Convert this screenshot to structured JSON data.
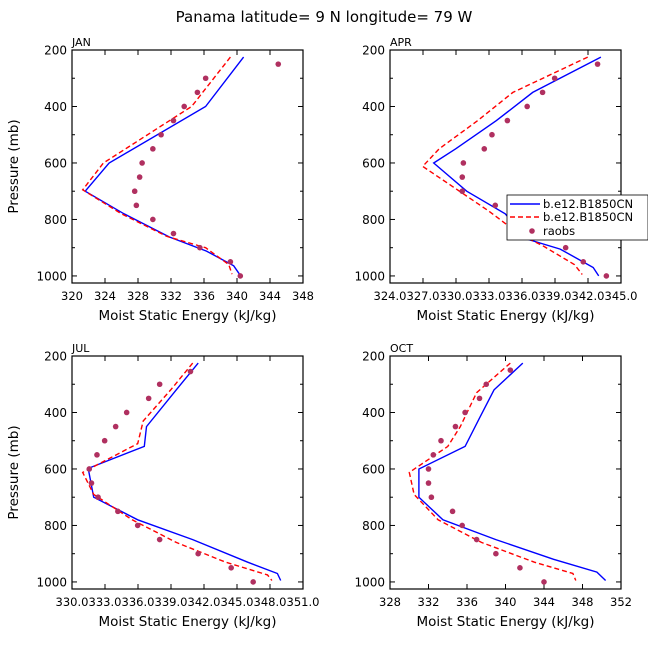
{
  "title": "Panama  latitude= 9 N longitude= 79 W",
  "colors": {
    "case1": "#0000ff",
    "case2": "#ff0000",
    "raobs": "#b03060",
    "axis": "#000000"
  },
  "legend": [
    "b.e12.B1850CN",
    "b.e12.B1850CN",
    "raobs"
  ],
  "chart_data": [
    {
      "type": "line",
      "title": "JAN",
      "xlabel": "Moist Static Energy (kJ/kg)",
      "ylabel": "Pressure (mb)",
      "xlim": [
        320,
        348
      ],
      "ylim": [
        200,
        1025
      ],
      "yticks": [
        200,
        400,
        600,
        800,
        1000
      ],
      "ytick_labels": [
        "200",
        "400",
        "600",
        "800",
        "1000"
      ],
      "xticks": [
        320,
        324,
        328,
        332,
        336,
        340,
        344,
        348
      ],
      "xtick_labels": [
        "320",
        "324",
        "328",
        "332",
        "336",
        "340",
        "344",
        "348"
      ],
      "series": [
        {
          "name": "b.e12.B1850CN",
          "kind": "solid",
          "points": [
            [
              340.8,
              225
            ],
            [
              336.2,
              400
            ],
            [
              324.5,
              600
            ],
            [
              321.6,
              700
            ],
            [
              326.3,
              780
            ],
            [
              331.8,
              862
            ],
            [
              336.3,
              912
            ],
            [
              339.6,
              964
            ],
            [
              340.3,
              994
            ]
          ]
        },
        {
          "name": "b.e12.B1850CN",
          "kind": "dashed",
          "points": [
            [
              339.2,
              225
            ],
            [
              334.5,
              400
            ],
            [
              323.8,
              600
            ],
            [
              321.3,
              695
            ],
            [
              326.0,
              780
            ],
            [
              331.5,
              860
            ],
            [
              336.2,
              900
            ],
            [
              339.0,
              960
            ],
            [
              339.4,
              994
            ]
          ]
        },
        {
          "name": "raobs",
          "kind": "points",
          "points": [
            [
              345.0,
              250
            ],
            [
              336.2,
              300
            ],
            [
              335.2,
              350
            ],
            [
              333.6,
              400
            ],
            [
              332.3,
              450
            ],
            [
              330.8,
              500
            ],
            [
              329.8,
              550
            ],
            [
              328.5,
              600
            ],
            [
              328.2,
              650
            ],
            [
              327.6,
              700
            ],
            [
              327.8,
              750
            ],
            [
              329.8,
              800
            ],
            [
              332.3,
              850
            ],
            [
              335.5,
              900
            ],
            [
              339.2,
              950
            ],
            [
              340.4,
              1000
            ]
          ]
        }
      ]
    },
    {
      "type": "line",
      "title": "APR",
      "xlabel": "Moist Static Energy (kJ/kg)",
      "ylabel": "",
      "xlim": [
        324.03,
        345.03
      ],
      "ylim": [
        200,
        1025
      ],
      "yticks": [
        200,
        400,
        600,
        800,
        1000
      ],
      "ytick_labels": [
        "200",
        "400",
        "600",
        "800",
        "1000"
      ],
      "xticks": [
        324.03,
        327.03,
        330.03,
        333.03,
        336.03,
        339.03,
        342.03,
        345.03
      ],
      "xtick_labels": [
        "324.0",
        "327.0",
        "330.0",
        "333.0",
        "336.0",
        "339.0",
        "342.0",
        "345.0"
      ],
      "series": [
        {
          "name": "b.e12.B1850CN",
          "kind": "solid",
          "points": [
            [
              343.2,
              225
            ],
            [
              337.0,
              350
            ],
            [
              333.7,
              450
            ],
            [
              330.0,
              550
            ],
            [
              328.0,
              600
            ],
            [
              331.0,
              700
            ],
            [
              334.5,
              780
            ],
            [
              336.5,
              870
            ],
            [
              339.5,
              905
            ],
            [
              342.5,
              970
            ],
            [
              343.0,
              1000
            ]
          ]
        },
        {
          "name": "b.e12.B1850CN",
          "kind": "dashed",
          "points": [
            [
              342.0,
              225
            ],
            [
              335.2,
              350
            ],
            [
              332.0,
              450
            ],
            [
              328.5,
              550
            ],
            [
              327.0,
              612
            ],
            [
              329.2,
              670
            ],
            [
              333.0,
              770
            ],
            [
              335.8,
              852
            ],
            [
              338.0,
              895
            ],
            [
              340.8,
              960
            ],
            [
              341.5,
              995
            ]
          ]
        },
        {
          "name": "raobs",
          "kind": "points",
          "points": [
            [
              342.9,
              250
            ],
            [
              339.0,
              300
            ],
            [
              337.9,
              350
            ],
            [
              336.5,
              400
            ],
            [
              334.7,
              450
            ],
            [
              333.3,
              500
            ],
            [
              332.6,
              550
            ],
            [
              330.7,
              600
            ],
            [
              330.6,
              650
            ],
            [
              330.6,
              700
            ],
            [
              333.6,
              750
            ],
            [
              335.5,
              800
            ],
            [
              337.9,
              850
            ],
            [
              340.0,
              900
            ],
            [
              341.6,
              950
            ],
            [
              343.7,
              1000
            ]
          ]
        }
      ]
    },
    {
      "type": "line",
      "title": "JUL",
      "xlabel": "Moist Static Energy (kJ/kg)",
      "ylabel": "Pressure (mb)",
      "xlim": [
        330.03,
        351.03
      ],
      "ylim": [
        200,
        1025
      ],
      "yticks": [
        200,
        400,
        600,
        800,
        1000
      ],
      "ytick_labels": [
        "200",
        "400",
        "600",
        "800",
        "1000"
      ],
      "xticks": [
        330.03,
        333.03,
        336.03,
        339.03,
        342.03,
        345.03,
        348.03,
        351.03
      ],
      "xtick_labels": [
        "330.0",
        "333.0",
        "336.0",
        "339.0",
        "342.0",
        "345.0",
        "348.0",
        "351.0"
      ],
      "series": [
        {
          "name": "b.e12.B1850CN",
          "kind": "solid",
          "points": [
            [
              341.5,
              225
            ],
            [
              339.5,
              320
            ],
            [
              336.8,
              450
            ],
            [
              336.6,
              520
            ],
            [
              331.5,
              598
            ],
            [
              332.0,
              700
            ],
            [
              336.0,
              780
            ],
            [
              341.0,
              850
            ],
            [
              346.0,
              930
            ],
            [
              348.7,
              970
            ],
            [
              349.0,
              995
            ]
          ]
        },
        {
          "name": "b.e12.B1850CN",
          "kind": "dashed",
          "points": [
            [
              341.0,
              225
            ],
            [
              339.0,
              320
            ],
            [
              336.5,
              430
            ],
            [
              336.0,
              510
            ],
            [
              331.0,
              612
            ],
            [
              332.0,
              690
            ],
            [
              335.5,
              780
            ],
            [
              339.5,
              860
            ],
            [
              344.0,
              930
            ],
            [
              347.8,
              975
            ],
            [
              348.2,
              995
            ]
          ]
        },
        {
          "name": "raobs",
          "kind": "points",
          "points": [
            [
              340.8,
              255
            ],
            [
              338.0,
              300
            ],
            [
              337.0,
              350
            ],
            [
              335.0,
              400
            ],
            [
              334.0,
              450
            ],
            [
              333.0,
              500
            ],
            [
              332.3,
              550
            ],
            [
              331.6,
              600
            ],
            [
              331.8,
              650
            ],
            [
              332.4,
              700
            ],
            [
              334.2,
              750
            ],
            [
              336.0,
              800
            ],
            [
              338.0,
              850
            ],
            [
              341.5,
              900
            ],
            [
              344.5,
              950
            ],
            [
              346.5,
              1000
            ]
          ]
        }
      ]
    },
    {
      "type": "line",
      "title": "OCT",
      "xlabel": "Moist Static Energy (kJ/kg)",
      "ylabel": "",
      "xlim": [
        328,
        352
      ],
      "ylim": [
        200,
        1025
      ],
      "yticks": [
        200,
        400,
        600,
        800,
        1000
      ],
      "ytick_labels": [
        "200",
        "400",
        "600",
        "800",
        "1000"
      ],
      "xticks": [
        328,
        332,
        336,
        340,
        344,
        348,
        352
      ],
      "xtick_labels": [
        "328",
        "332",
        "336",
        "340",
        "344",
        "348",
        "352"
      ],
      "series": [
        {
          "name": "b.e12.B1850CN",
          "kind": "solid",
          "points": [
            [
              341.8,
              225
            ],
            [
              338.8,
              320
            ],
            [
              337.3,
              420
            ],
            [
              335.8,
              520
            ],
            [
              331.0,
              600
            ],
            [
              331.0,
              700
            ],
            [
              333.5,
              780
            ],
            [
              339.0,
              850
            ],
            [
              345.0,
              920
            ],
            [
              349.5,
              965
            ],
            [
              350.4,
              995
            ]
          ]
        },
        {
          "name": "b.e12.B1850CN",
          "kind": "dashed",
          "points": [
            [
              340.5,
              225
            ],
            [
              337.0,
              330
            ],
            [
              335.3,
              450
            ],
            [
              334.0,
              520
            ],
            [
              330.0,
              612
            ],
            [
              330.5,
              690
            ],
            [
              333.0,
              780
            ],
            [
              337.5,
              860
            ],
            [
              343.0,
              930
            ],
            [
              347.0,
              970
            ],
            [
              347.3,
              995
            ]
          ]
        },
        {
          "name": "raobs",
          "kind": "points",
          "points": [
            [
              340.5,
              250
            ],
            [
              338.0,
              300
            ],
            [
              337.3,
              350
            ],
            [
              335.8,
              400
            ],
            [
              334.8,
              450
            ],
            [
              333.3,
              500
            ],
            [
              332.5,
              550
            ],
            [
              332.0,
              600
            ],
            [
              332.0,
              650
            ],
            [
              332.3,
              700
            ],
            [
              334.5,
              750
            ],
            [
              335.5,
              800
            ],
            [
              337.0,
              850
            ],
            [
              339.0,
              900
            ],
            [
              341.5,
              950
            ],
            [
              344.0,
              1000
            ]
          ]
        }
      ]
    }
  ]
}
